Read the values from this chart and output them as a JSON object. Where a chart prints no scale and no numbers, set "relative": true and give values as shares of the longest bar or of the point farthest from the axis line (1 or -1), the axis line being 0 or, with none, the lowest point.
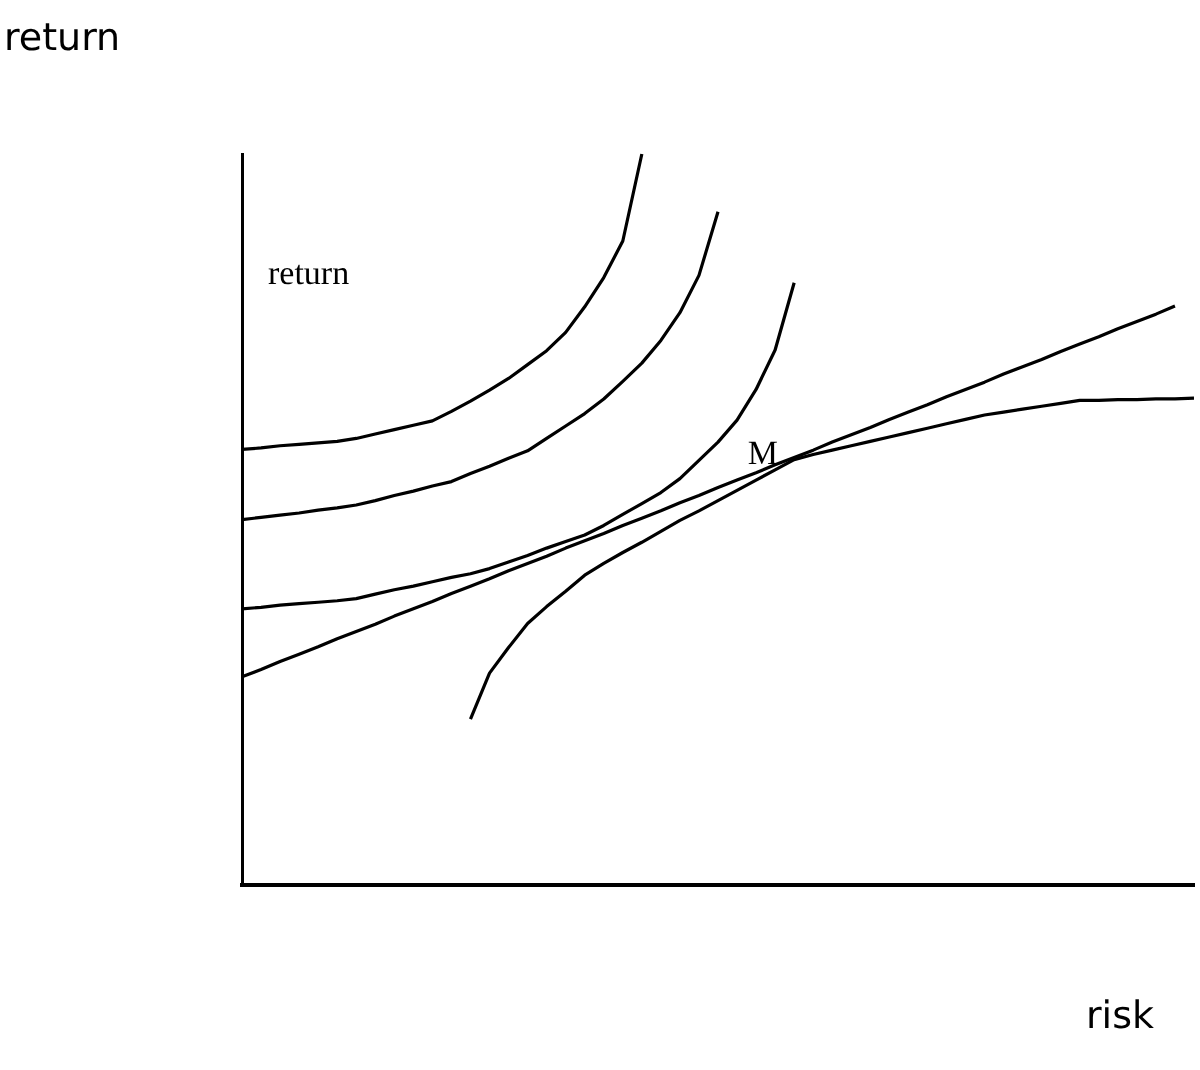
{
  "chart_data": {
    "type": "line",
    "relative": true,
    "ylabel": "return",
    "xlabel": "risk",
    "grid": false,
    "legend": false,
    "marker": "none",
    "line_style": "solid",
    "annotations": [
      "return",
      "M"
    ],
    "categories": [
      null,
      null,
      null,
      null,
      null,
      null,
      null,
      null,
      null,
      null,
      null,
      null,
      null,
      null,
      null,
      null,
      null,
      null,
      null,
      null,
      null,
      null,
      null,
      null,
      null,
      null,
      null,
      null,
      null,
      null,
      null,
      null,
      null,
      null,
      null,
      null,
      null,
      null,
      null,
      null,
      null,
      null,
      null,
      null,
      null,
      null,
      null,
      null,
      null,
      null,
      null
    ],
    "series": [
      {
        "color": "#000000",
        "values": [
          0.596,
          0.598,
          0.601,
          0.603,
          0.605,
          0.607,
          0.611,
          0.617,
          0.623,
          0.629,
          0.635,
          0.648,
          0.662,
          0.677,
          0.693,
          0.712,
          0.731,
          0.756,
          0.791,
          0.831,
          0.881,
          1,
          null,
          null,
          null,
          null,
          null,
          null,
          null,
          null,
          null,
          null,
          null,
          null,
          null,
          null,
          null,
          null,
          null,
          null,
          null,
          null,
          null,
          null,
          null,
          null,
          null,
          null,
          null,
          null,
          null
        ]
      },
      {
        "color": "#000000",
        "values": [
          0.5,
          0.503,
          0.506,
          0.509,
          0.513,
          0.516,
          0.52,
          0.526,
          0.533,
          0.539,
          0.546,
          0.552,
          0.563,
          0.573,
          0.584,
          0.594,
          0.611,
          0.628,
          0.645,
          0.665,
          0.689,
          0.714,
          0.745,
          0.783,
          0.834,
          0.921,
          null,
          null,
          null,
          null,
          null,
          null,
          null,
          null,
          null,
          null,
          null,
          null,
          null,
          null,
          null,
          null,
          null,
          null,
          null,
          null,
          null,
          null,
          null,
          null,
          null
        ]
      },
      {
        "color": "#000000",
        "values": [
          0.378,
          0.38,
          0.383,
          0.385,
          0.387,
          0.389,
          0.392,
          0.398,
          0.404,
          0.409,
          0.415,
          0.421,
          0.426,
          0.433,
          0.442,
          0.451,
          0.461,
          0.47,
          0.479,
          0.492,
          0.507,
          0.522,
          0.537,
          0.556,
          0.581,
          0.606,
          0.636,
          0.678,
          0.732,
          0.824,
          null,
          null,
          null,
          null,
          null,
          null,
          null,
          null,
          null,
          null,
          null,
          null,
          null,
          null,
          null,
          null,
          null,
          null,
          null,
          null,
          null
        ]
      },
      {
        "color": "#000000",
        "values": [
          0.285,
          0.295,
          0.306,
          0.316,
          0.326,
          0.337,
          0.347,
          0.357,
          0.368,
          0.378,
          0.388,
          0.399,
          0.409,
          0.419,
          0.43,
          0.44,
          0.45,
          0.461,
          0.471,
          0.481,
          0.492,
          0.502,
          0.512,
          0.523,
          0.533,
          0.544,
          0.554,
          0.564,
          0.575,
          0.585,
          0.595,
          0.606,
          0.616,
          0.626,
          0.637,
          0.647,
          0.657,
          0.668,
          0.678,
          0.688,
          0.699,
          0.709,
          0.719,
          0.73,
          0.74,
          0.75,
          0.761,
          0.771,
          0.781,
          0.792,
          null
        ]
      },
      {
        "color": "#000000",
        "values": [
          null,
          null,
          null,
          null,
          null,
          null,
          null,
          null,
          null,
          null,
          null,
          null,
          0.227,
          0.29,
          0.325,
          0.358,
          0.381,
          0.402,
          0.424,
          0.44,
          0.455,
          0.469,
          0.484,
          0.499,
          0.512,
          0.526,
          0.54,
          0.554,
          0.568,
          0.582,
          0.589,
          0.595,
          0.601,
          0.607,
          0.613,
          0.619,
          0.625,
          0.631,
          0.637,
          0.643,
          0.647,
          0.651,
          0.655,
          0.659,
          0.663,
          0.663,
          0.664,
          0.664,
          0.665,
          0.665,
          0.666
        ]
      }
    ]
  }
}
